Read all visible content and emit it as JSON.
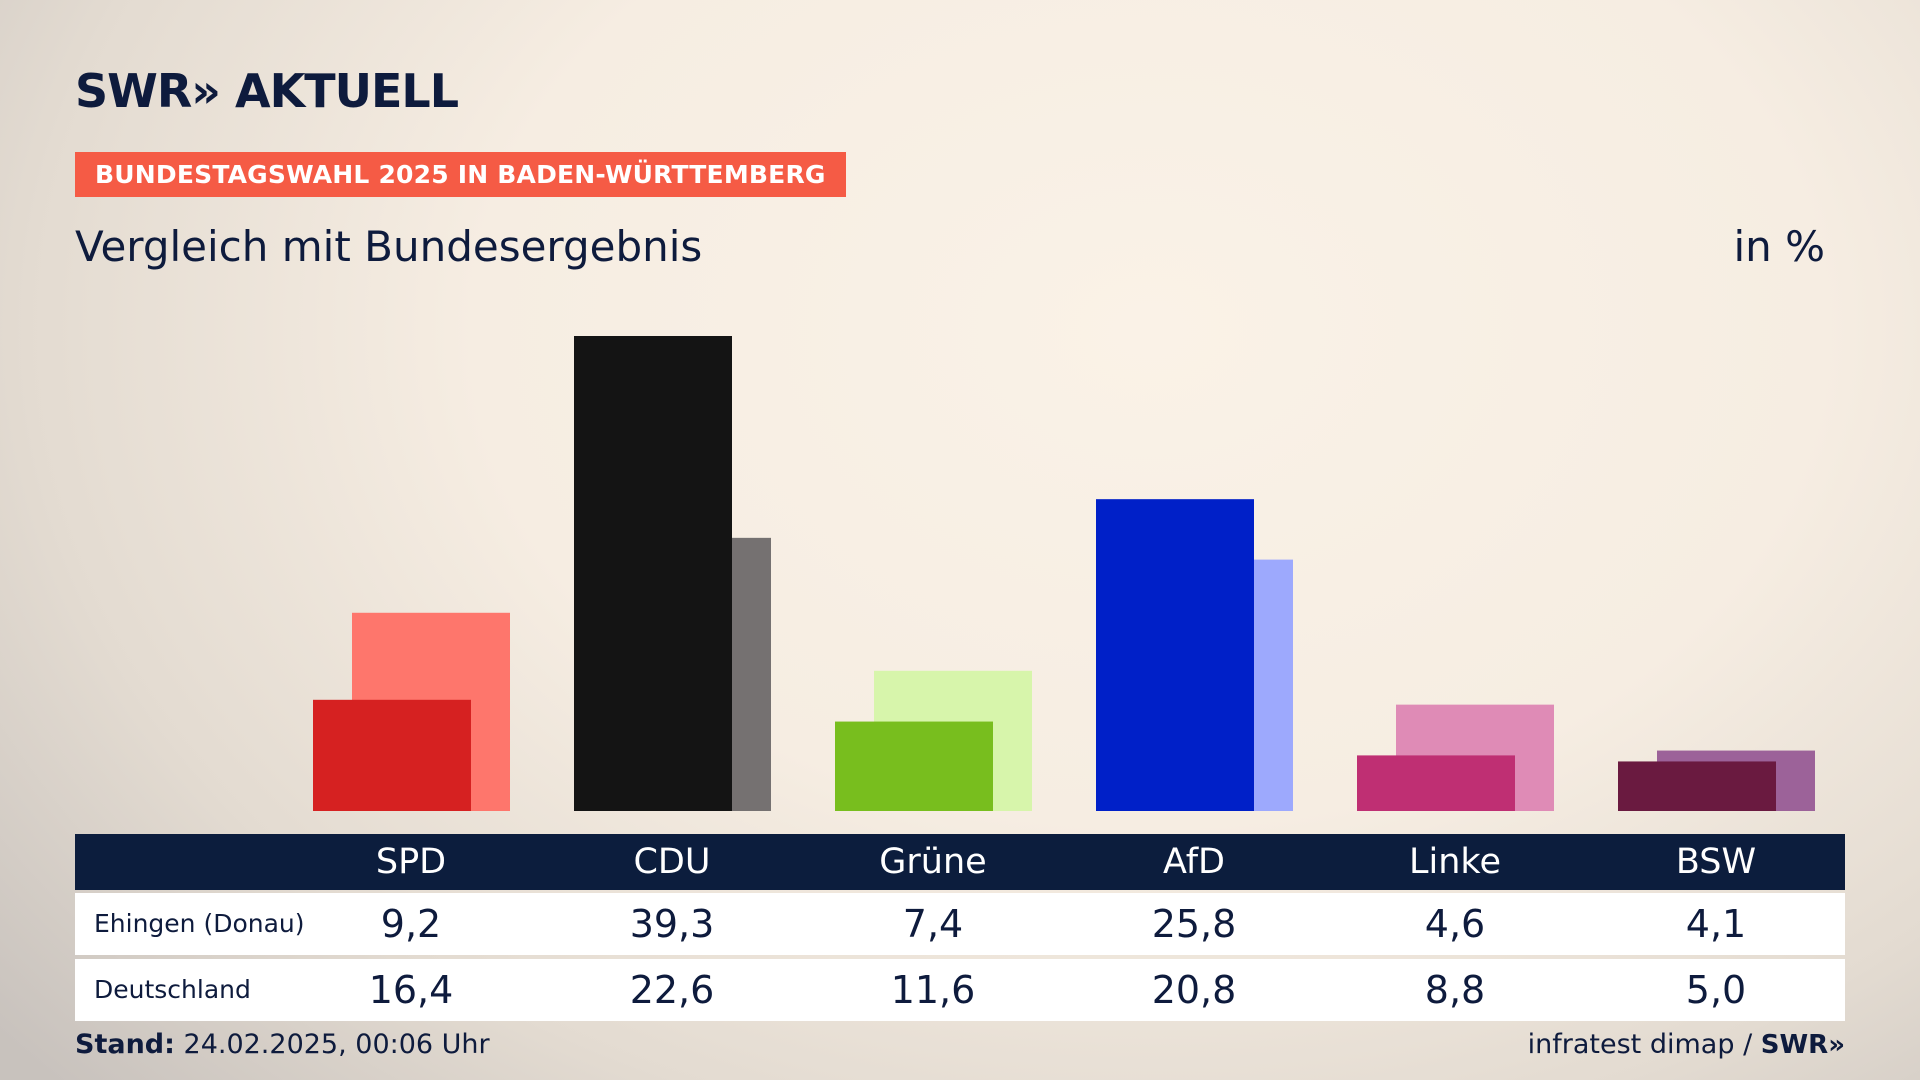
{
  "header": {
    "brand": "SWR» AKTUELL",
    "badge": "BUNDESTAGSWAHL 2025 IN BADEN-WÜRTTEMBERG",
    "subtitle": "Vergleich mit Bundesergebnis",
    "unit": "in %"
  },
  "chart_data": {
    "type": "bar",
    "categories": [
      "SPD",
      "CDU",
      "Grüne",
      "AfD",
      "Linke",
      "BSW"
    ],
    "series": [
      {
        "name": "Ehingen (Donau)",
        "values": [
          9.2,
          39.3,
          7.4,
          25.8,
          4.6,
          4.1
        ],
        "colors": [
          "#d62121",
          "#141414",
          "#78be1e",
          "#0020c8",
          "#bf2f73",
          "#6a1a40"
        ]
      },
      {
        "name": "Deutschland",
        "values": [
          16.4,
          22.6,
          11.6,
          20.8,
          8.8,
          5.0
        ],
        "colors": [
          "#fe766c",
          "#757171",
          "#d7f5ab",
          "#9da9fd",
          "#df8bb6",
          "#9c6299"
        ]
      }
    ],
    "ylim": [
      0,
      40
    ],
    "grid": false,
    "legend": "table"
  },
  "table": {
    "headers": [
      "SPD",
      "CDU",
      "Grüne",
      "AfD",
      "Linke",
      "BSW"
    ],
    "rows": [
      {
        "label": "Ehingen (Donau)",
        "values": [
          "9,2",
          "39,3",
          "7,4",
          "25,8",
          "4,6",
          "4,1"
        ]
      },
      {
        "label": "Deutschland",
        "values": [
          "16,4",
          "22,6",
          "11,6",
          "20,8",
          "8,8",
          "5,0"
        ]
      }
    ]
  },
  "footer": {
    "stand_label": "Stand:",
    "stand_value": "24.02.2025, 00:06 Uhr",
    "source": "infratest dimap /",
    "source_brand": "SWR»"
  }
}
